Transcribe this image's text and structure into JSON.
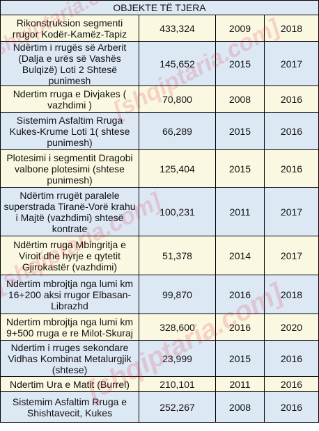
{
  "header": "OBJEKTE TË TJERA",
  "rows": [
    {
      "name": "Rikonstruksion segmenti rrugor Kodër-Kamëz-Tapiz",
      "value": "433,324",
      "start": "2009",
      "end": "2018"
    },
    {
      "name": "Ndërtim i rrugës së Arberit (Dalja e urës së Vashës Bulqizë) Loti 2 Shtesë punimesh",
      "value": "145,652",
      "start": "2015",
      "end": "2017"
    },
    {
      "name": "Ndertim rruga e Divjakes ( vazhdimi )",
      "value": "70,800",
      "start": "2008",
      "end": "2016"
    },
    {
      "name": "Sistemim Asfaltim Rruga Kukes-Krume Loti 1( shtese punimesh)",
      "value": "66,289",
      "start": "2015",
      "end": "2016"
    },
    {
      "name": "Plotesimi i segmentit Dragobi valbone plotesimi (shtese punimesh)",
      "value": "125,404",
      "start": "2015",
      "end": "2016"
    },
    {
      "name": "Ndërtim rrugët paralele superstrada Tiranë-Vorë krahu i  Majtë (vazhdimi) shtesë kontrate",
      "value": "100,231",
      "start": "2011",
      "end": "2017"
    },
    {
      "name": "Ndërtim rruga Mbingritja e Viroit dhe hyrje e qytetit Gjirokastër (vazhdimi)",
      "value": "51,378",
      "start": "2014",
      "end": "2017"
    },
    {
      "name": "Ndertim mbrojtja nga lumi km 16+200 aksi rrugor Elbasan-Librazhd",
      "value": "99,870",
      "start": "2016",
      "end": "2018"
    },
    {
      "name": "Ndertim mbrojtja nga lumi km 9+500 rruga e re Milot-Skuraj",
      "value": "328,600",
      "start": "2016",
      "end": "2020"
    },
    {
      "name": "Ndertim i rruges sekondare Vidhas Kombinat Metalurgjik (shtese)",
      "value": "23,999",
      "start": "2015",
      "end": "2016"
    },
    {
      "name": "Ndertim Ura e Matit (Burrel)",
      "value": "210,101",
      "start": "2011",
      "end": "2016"
    },
    {
      "name": "Sistemim Asfaltim Rruga e Shishtavecit, Kukes",
      "value": "252,267",
      "start": "2008",
      "end": "2016"
    }
  ],
  "watermark": "[shqiptaria.com]"
}
